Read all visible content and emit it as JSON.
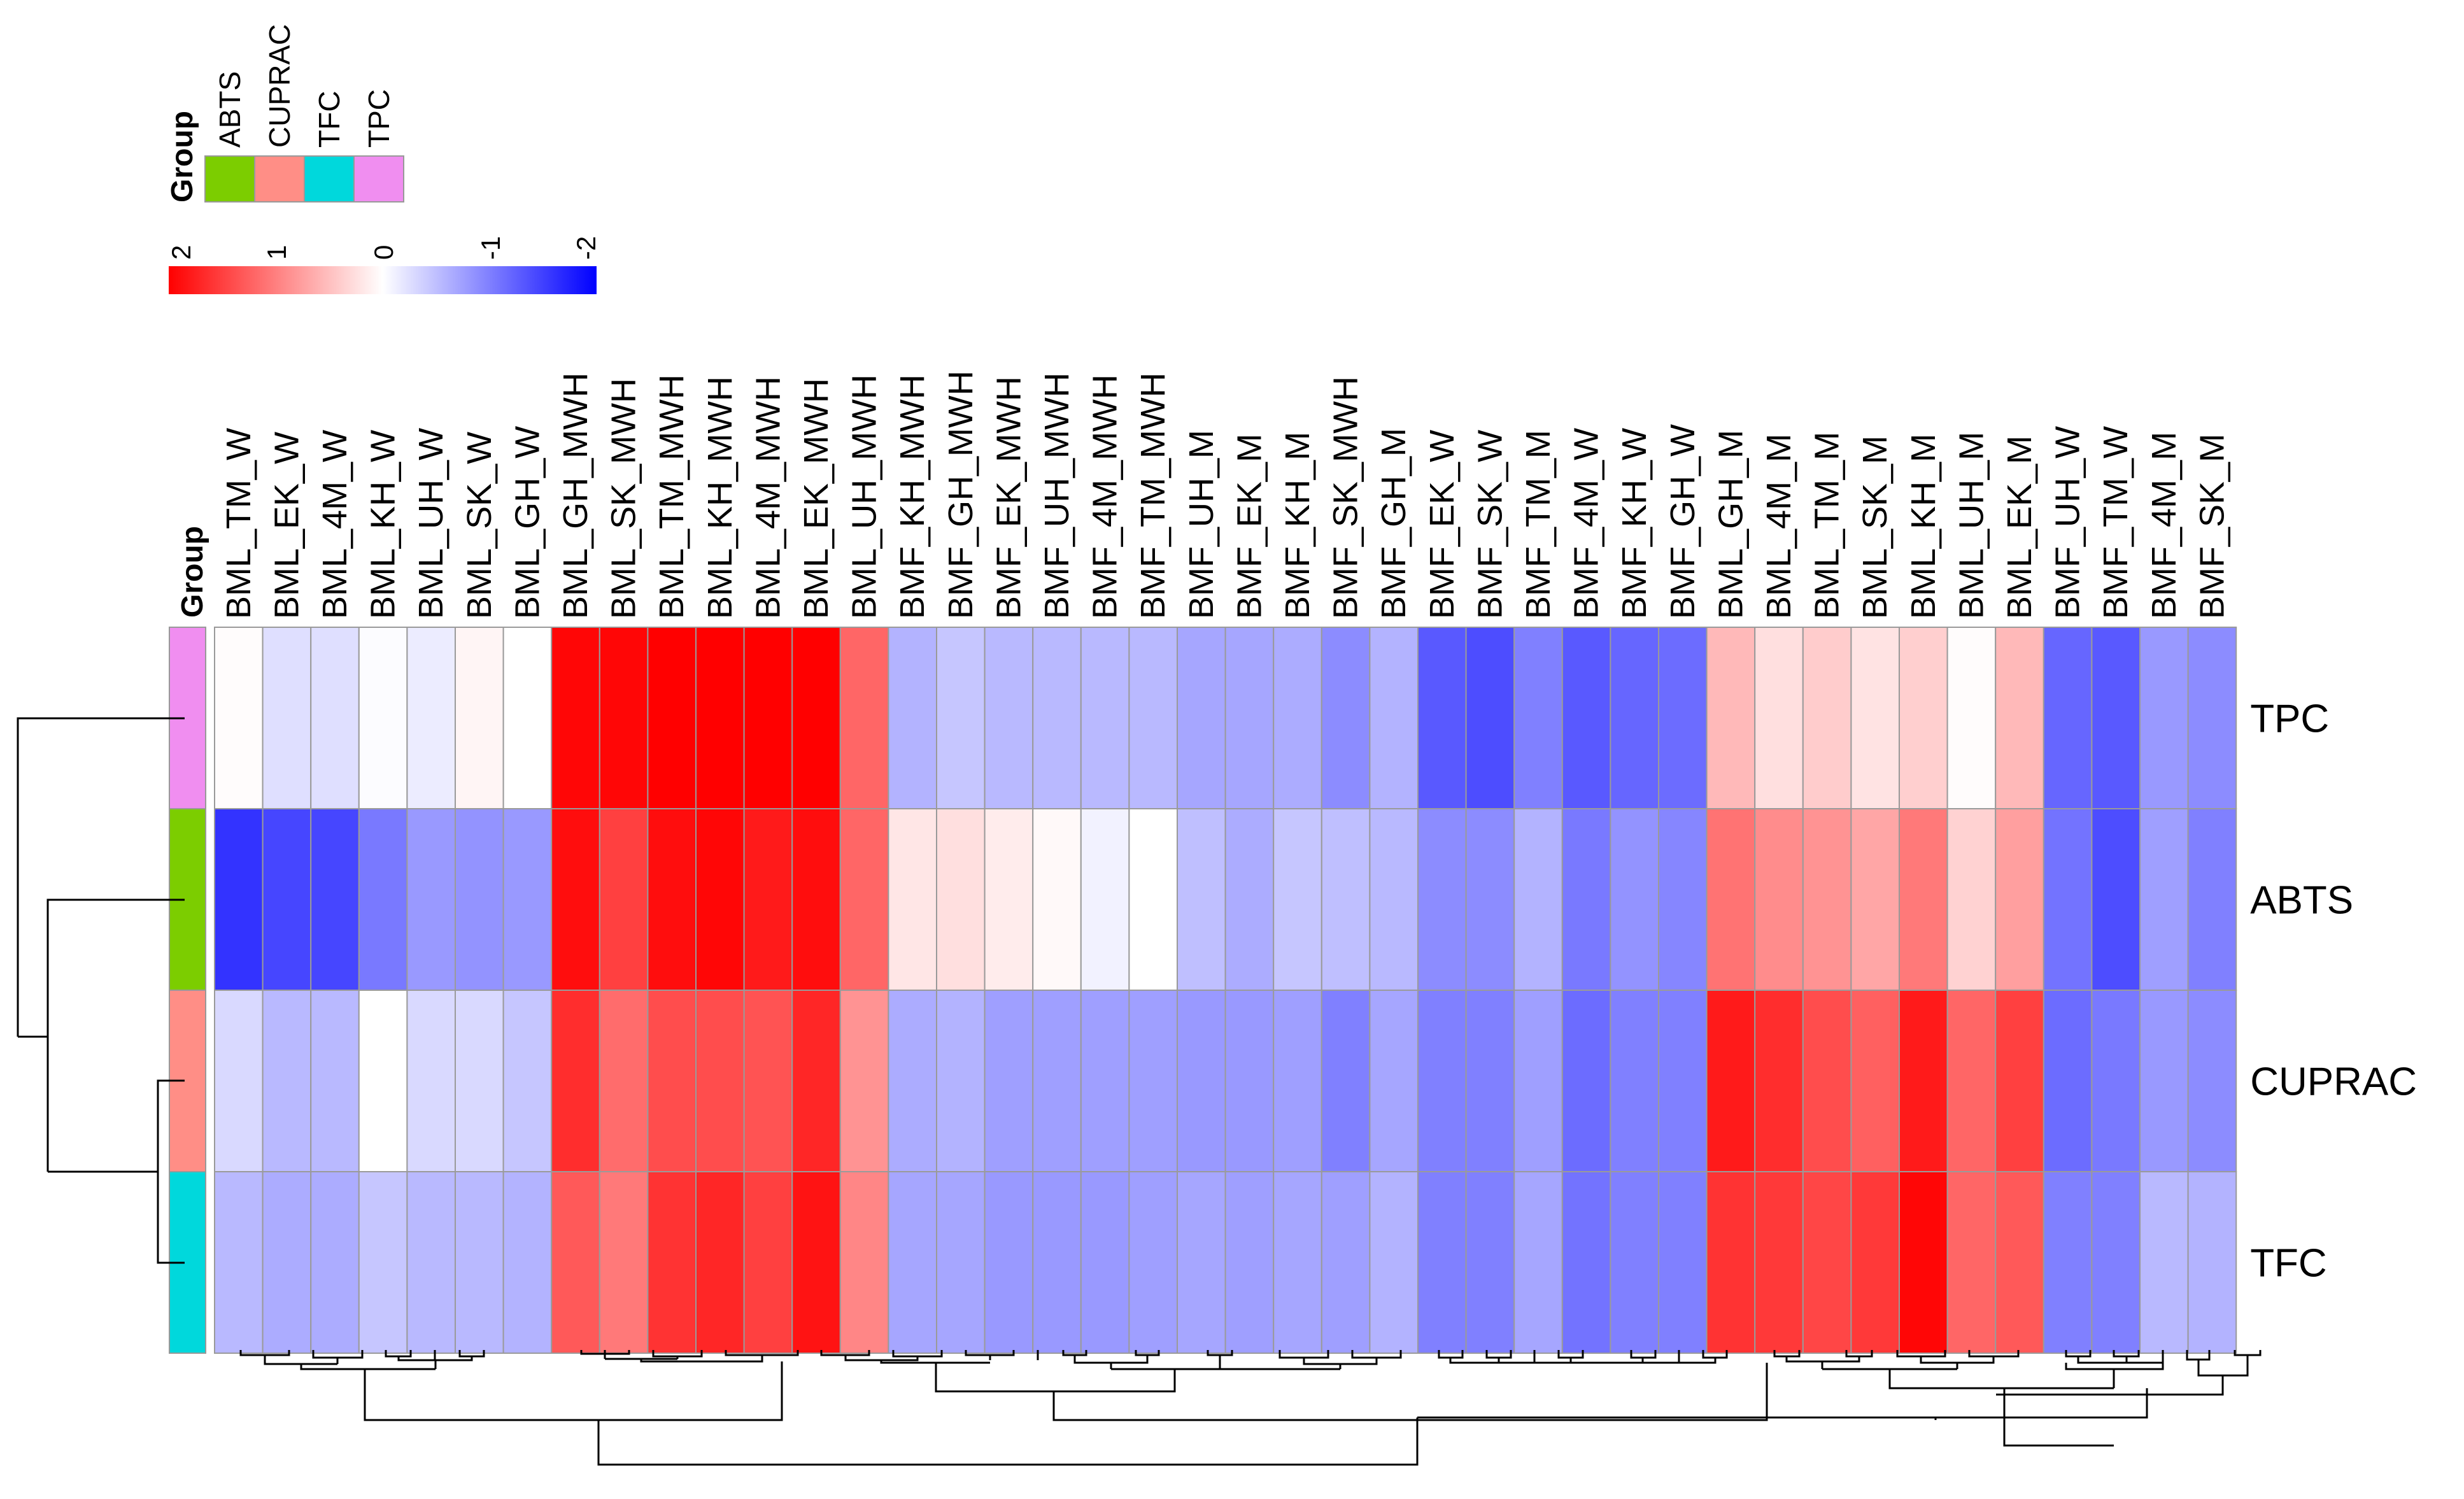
{
  "chart_data": {
    "type": "heatmap",
    "title": "",
    "legend": {
      "group_title": "Group",
      "groups": [
        {
          "name": "ABTS",
          "color": "#7CCD00"
        },
        {
          "name": "CUPRAC",
          "color": "#FF8E86"
        },
        {
          "name": "TFC",
          "color": "#00D8DC"
        },
        {
          "name": "TPC",
          "color": "#F08EF0"
        }
      ],
      "scale_ticks": [
        "2",
        "1",
        "0",
        "-1",
        "-2"
      ],
      "scale_range": [
        2,
        -2
      ],
      "scale_colors": {
        "high": "#FF0000",
        "mid": "#FFFFFF",
        "low": "#0000FF"
      }
    },
    "column_annotation_label": "Group",
    "columns": [
      "BML_TM_W",
      "BML_EK_W",
      "BML_4M_W",
      "BML_KH_W",
      "BML_UH_W",
      "BML_SK_W",
      "BML_GH_W",
      "BML_GH_MWH",
      "BML_SK_MWH",
      "BML_TM_MWH",
      "BML_KH_MWH",
      "BML_4M_MWH",
      "BML_EK_MWH",
      "BML_UH_MWH",
      "BMF_KH_MWH",
      "BMF_GH_MWH",
      "BMF_EK_MWH",
      "BMF_UH_MWH",
      "BMF_4M_MWH",
      "BMF_TM_MWH",
      "BMF_UH_M",
      "BMF_EK_M",
      "BMF_KH_M",
      "BMF_SK_MWH",
      "BMF_GH_M",
      "BMF_EK_W",
      "BMF_SK_W",
      "BMF_TM_M",
      "BMF_4M_W",
      "BMF_KH_W",
      "BMF_GH_W",
      "BML_GH_M",
      "BML_4M_M",
      "BML_TM_M",
      "BML_SK_M",
      "BML_KH_M",
      "BML_UH_M",
      "BML_EK_M",
      "BMF_UH_W",
      "BMF_TM_W",
      "BMF_4M_M",
      "BMF_SK_M"
    ],
    "rows": [
      {
        "name": "TPC",
        "group": "TPC",
        "values": [
          0.02,
          -0.25,
          -0.25,
          -0.02,
          -0.15,
          0.08,
          0,
          1.95,
          1.95,
          2,
          2,
          2,
          2,
          1.2,
          -0.6,
          -0.45,
          -0.55,
          -0.55,
          -0.55,
          -0.55,
          -0.7,
          -0.7,
          -0.65,
          -0.9,
          -0.6,
          -1.3,
          -1.4,
          -1.0,
          -1.3,
          -1.2,
          -1.15,
          0.55,
          0.25,
          0.4,
          0.22,
          0.38,
          0.02,
          0.55,
          -1.2,
          -1.3,
          -0.8,
          -0.9
        ]
      },
      {
        "name": "ABTS",
        "group": "ABTS",
        "values": [
          -1.6,
          -1.45,
          -1.45,
          -1.05,
          -0.8,
          -0.85,
          -0.8,
          1.9,
          1.5,
          1.9,
          1.95,
          1.8,
          1.9,
          1.2,
          0.2,
          0.25,
          0.15,
          0.05,
          -0.1,
          0,
          -0.5,
          -0.65,
          -0.45,
          -0.5,
          -0.55,
          -0.9,
          -0.9,
          -0.6,
          -1.05,
          -0.85,
          -0.95,
          1.1,
          0.9,
          0.85,
          0.7,
          1.05,
          0.35,
          0.75,
          -1.1,
          -1.4,
          -0.75,
          -1.0
        ]
      },
      {
        "name": "CUPRAC",
        "group": "CUPRAC",
        "values": [
          -0.3,
          -0.55,
          -0.55,
          0,
          -0.3,
          -0.3,
          -0.45,
          1.65,
          1.15,
          1.4,
          1.4,
          1.35,
          1.7,
          0.85,
          -0.65,
          -0.6,
          -0.75,
          -0.75,
          -0.75,
          -0.75,
          -0.8,
          -0.8,
          -0.75,
          -1.0,
          -0.7,
          -1.0,
          -1.0,
          -0.75,
          -1.15,
          -1.0,
          -1.0,
          1.8,
          1.65,
          1.4,
          1.25,
          1.8,
          1.2,
          1.5,
          -1.15,
          -1.05,
          -0.8,
          -0.9
        ]
      },
      {
        "name": "TFC",
        "group": "TFC",
        "values": [
          -0.55,
          -0.65,
          -0.65,
          -0.45,
          -0.55,
          -0.55,
          -0.6,
          1.3,
          1.05,
          1.6,
          1.7,
          1.5,
          1.85,
          0.95,
          -0.7,
          -0.7,
          -0.8,
          -0.8,
          -0.8,
          -0.75,
          -0.7,
          -0.75,
          -0.7,
          -0.75,
          -0.6,
          -1.0,
          -1.0,
          -0.7,
          -1.1,
          -1.0,
          -1.0,
          1.6,
          1.55,
          1.45,
          1.55,
          1.95,
          1.2,
          1.3,
          -1.0,
          -1.0,
          -0.55,
          -0.6
        ]
      }
    ]
  }
}
